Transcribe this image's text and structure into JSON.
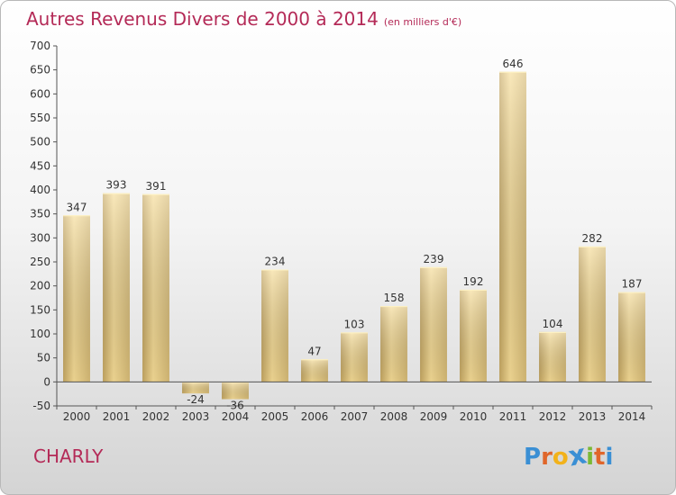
{
  "header": {
    "title": "Autres Revenus Divers de 2000 à 2014",
    "unit": "(en milliers d'€)"
  },
  "footer": {
    "place": "CHARLY",
    "logo_letters": [
      "P",
      "r",
      "o",
      "x",
      "i",
      "t",
      "i"
    ],
    "logo_colors": [
      "#3a8fd4",
      "#e0662a",
      "#f2b21a",
      "#3a8fd4",
      "#7ab934",
      "#e0662a",
      "#3a8fd4"
    ]
  },
  "chart_data": {
    "type": "bar",
    "title": "Autres Revenus Divers de 2000 à 2014",
    "subtitle": "(en milliers d'€)",
    "categories": [
      "2000",
      "2001",
      "2002",
      "2003",
      "2004",
      "2005",
      "2006",
      "2007",
      "2008",
      "2009",
      "2010",
      "2011",
      "2012",
      "2013",
      "2014"
    ],
    "values": [
      347,
      393,
      391,
      -24,
      -36,
      234,
      47,
      103,
      158,
      239,
      192,
      646,
      104,
      282,
      187
    ],
    "data_labels": [
      "347",
      "393",
      "391",
      "-24",
      "-36",
      "234",
      "47",
      "103",
      "158",
      "239",
      "192",
      "646",
      "104",
      "282",
      "187"
    ],
    "ylim": [
      -50,
      700
    ],
    "yticks": [
      -50,
      0,
      50,
      100,
      150,
      200,
      250,
      300,
      350,
      400,
      450,
      500,
      550,
      600,
      650,
      700
    ],
    "ytick_labels": [
      "-50",
      "0",
      "50",
      "100",
      "150",
      "200",
      "250",
      "300",
      "350",
      "400",
      "450",
      "500",
      "550",
      "600",
      "650",
      "700"
    ],
    "grid": false,
    "colors": {
      "bar_light": "#f6dc96",
      "bar_dark": "#c6a863",
      "axis": "#555555",
      "title": "#b42a57"
    }
  }
}
